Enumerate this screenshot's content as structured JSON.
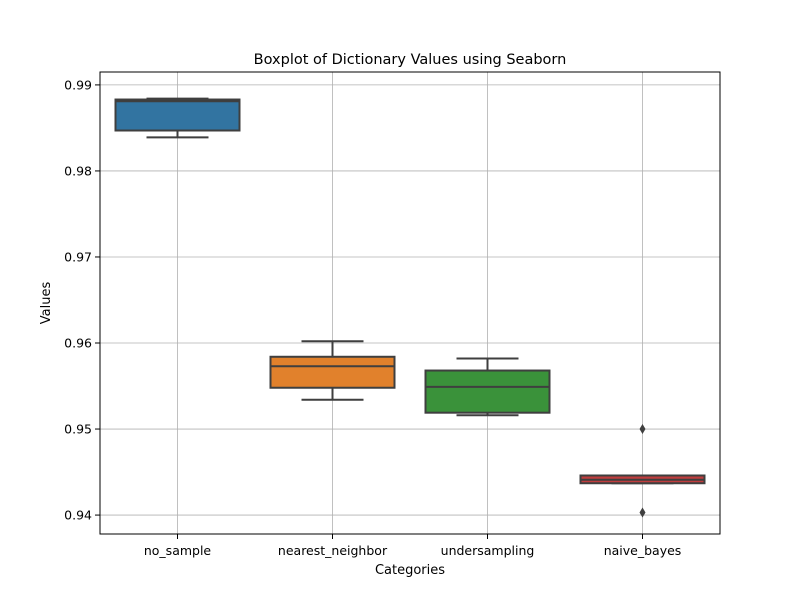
{
  "chart_data": {
    "type": "box",
    "title": "Boxplot of Dictionary Values using Seaborn",
    "xlabel": "Categories",
    "ylabel": "Values",
    "ylim": [
      0.9378,
      0.9915
    ],
    "yticks": [
      0.94,
      0.95,
      0.96,
      0.97,
      0.98,
      0.99
    ],
    "ytick_labels": [
      "0.94",
      "0.95",
      "0.96",
      "0.97",
      "0.98",
      "0.99"
    ],
    "grid": true,
    "categories": [
      "no_sample",
      "nearest_neighbor",
      "undersampling",
      "naive_bayes"
    ],
    "boxes": [
      {
        "category": "no_sample",
        "color": "#3274a1",
        "whisker_low": 0.9839,
        "q1": 0.9847,
        "median": 0.9881,
        "q3": 0.9883,
        "whisker_high": 0.9884,
        "outliers": []
      },
      {
        "category": "nearest_neighbor",
        "color": "#e1812c",
        "whisker_low": 0.9534,
        "q1": 0.9548,
        "median": 0.9573,
        "q3": 0.9584,
        "whisker_high": 0.9602,
        "outliers": []
      },
      {
        "category": "undersampling",
        "color": "#3a923a",
        "whisker_low": 0.9516,
        "q1": 0.9519,
        "median": 0.9549,
        "q3": 0.9568,
        "whisker_high": 0.9582,
        "outliers": []
      },
      {
        "category": "naive_bayes",
        "color": "#c03d3e",
        "whisker_low": 0.9437,
        "q1": 0.9437,
        "median": 0.9441,
        "q3": 0.9446,
        "whisker_high": 0.9446,
        "outliers": [
          0.95,
          0.9403
        ]
      }
    ]
  }
}
